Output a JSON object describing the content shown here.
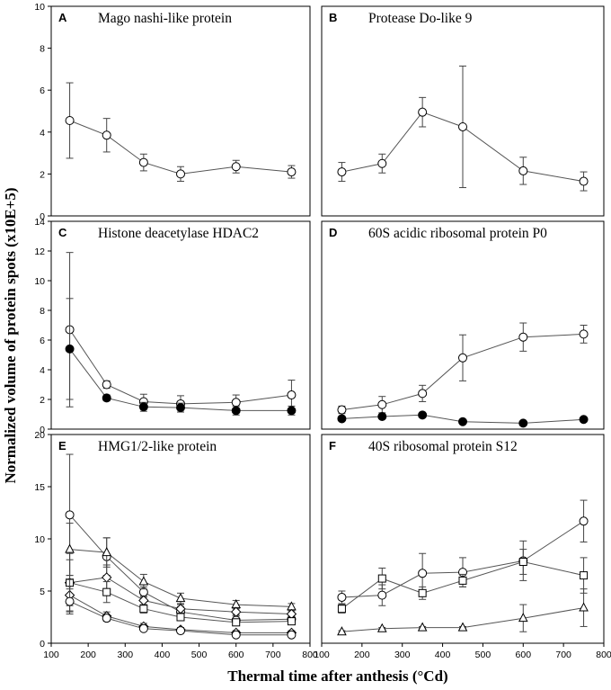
{
  "figure": {
    "ylabel": "Normalized volume of protein spots (x10E+5)",
    "xlabel": "Thermal time after anthesis (°Cd)"
  },
  "chart_data": [
    {
      "type": "line",
      "label": "A",
      "title": "Mago nashi-like protein",
      "xlim": [
        100,
        800
      ],
      "ylim": [
        0,
        10
      ],
      "xticks": [],
      "yticks": [
        0,
        2,
        4,
        6,
        8,
        10
      ],
      "series": [
        {
          "name": "s1",
          "marker": "circle-open",
          "x": [
            150,
            250,
            350,
            450,
            600,
            750
          ],
          "y": [
            4.55,
            3.85,
            2.55,
            2.0,
            2.35,
            2.1
          ],
          "err": [
            1.8,
            0.8,
            0.4,
            0.35,
            0.3,
            0.3
          ]
        }
      ]
    },
    {
      "type": "line",
      "label": "B",
      "title": "Protease Do-like 9",
      "xlim": [
        100,
        800
      ],
      "ylim": [
        0,
        10
      ],
      "xticks": [],
      "yticks": [],
      "series": [
        {
          "name": "s1",
          "marker": "circle-open",
          "x": [
            150,
            250,
            350,
            450,
            600,
            750
          ],
          "y": [
            2.1,
            2.5,
            4.95,
            4.25,
            2.15,
            1.65
          ],
          "err": [
            0.45,
            0.45,
            0.7,
            2.9,
            0.65,
            0.45
          ]
        }
      ]
    },
    {
      "type": "line",
      "label": "C",
      "title": "Histone deacetylase HDAC2",
      "xlim": [
        100,
        800
      ],
      "ylim": [
        0,
        14
      ],
      "xticks": [],
      "yticks": [
        0,
        2,
        4,
        6,
        8,
        10,
        12,
        14
      ],
      "series": [
        {
          "name": "s1",
          "marker": "circle-open",
          "x": [
            150,
            250,
            350,
            450,
            600,
            750
          ],
          "y": [
            6.7,
            3.0,
            1.85,
            1.7,
            1.8,
            2.3
          ],
          "err": [
            5.2,
            0.25,
            0.5,
            0.55,
            0.5,
            1.0
          ]
        },
        {
          "name": "s2",
          "marker": "circle-filled",
          "x": [
            150,
            250,
            350,
            450,
            600,
            750
          ],
          "y": [
            5.4,
            2.1,
            1.5,
            1.45,
            1.25,
            1.25
          ],
          "err": [
            3.4,
            0.2,
            0.3,
            0.3,
            0.3,
            0.3
          ]
        }
      ]
    },
    {
      "type": "line",
      "label": "D",
      "title": "60S acidic ribosomal protein P0",
      "xlim": [
        100,
        800
      ],
      "ylim": [
        0,
        14
      ],
      "xticks": [],
      "yticks": [],
      "series": [
        {
          "name": "s1",
          "marker": "circle-open",
          "x": [
            150,
            250,
            350,
            450,
            600,
            750
          ],
          "y": [
            1.3,
            1.65,
            2.4,
            4.8,
            6.2,
            6.4
          ],
          "err": [
            0.25,
            0.55,
            0.55,
            1.55,
            0.95,
            0.6
          ]
        },
        {
          "name": "s2",
          "marker": "circle-filled",
          "x": [
            150,
            250,
            350,
            450,
            600,
            750
          ],
          "y": [
            0.7,
            0.85,
            0.95,
            0.5,
            0.4,
            0.65
          ],
          "err": [
            0.1,
            0.15,
            0.1,
            0.05,
            0.05,
            0.15
          ]
        }
      ]
    },
    {
      "type": "line",
      "label": "E",
      "title": "HMG1/2-like protein",
      "xlim": [
        100,
        800
      ],
      "ylim": [
        0,
        20
      ],
      "xticks": [
        100,
        200,
        300,
        400,
        500,
        600,
        700,
        800
      ],
      "yticks": [
        0,
        5,
        10,
        15,
        20
      ],
      "series": [
        {
          "name": "s1",
          "marker": "circle-open",
          "x": [
            150,
            250,
            350,
            450,
            600,
            750
          ],
          "y": [
            12.3,
            8.3,
            4.9,
            3.0,
            2.2,
            2.3
          ],
          "err": [
            5.8,
            1.8,
            0.5,
            0.5,
            0.4,
            0.4
          ]
        },
        {
          "name": "s2",
          "marker": "triangle-open",
          "x": [
            150,
            250,
            350,
            450,
            600,
            750
          ],
          "y": [
            9.0,
            8.7,
            5.9,
            4.3,
            3.7,
            3.5
          ],
          "err": [
            2.5,
            1.4,
            0.7,
            0.5,
            0.4,
            0.3
          ]
        },
        {
          "name": "s3",
          "marker": "diamond-open",
          "x": [
            150,
            250,
            350,
            450,
            600,
            750
          ],
          "y": [
            5.8,
            6.3,
            4.1,
            3.3,
            3.0,
            2.8
          ],
          "err": [
            2.8,
            1.2,
            0.4,
            0.4,
            0.3,
            0.3
          ]
        },
        {
          "name": "s4",
          "marker": "square-open",
          "x": [
            150,
            250,
            350,
            450,
            600,
            750
          ],
          "y": [
            5.8,
            4.9,
            3.3,
            2.5,
            2.0,
            2.1
          ],
          "err": [
            2.2,
            1.0,
            0.4,
            0.3,
            0.3,
            0.3
          ]
        },
        {
          "name": "s5",
          "marker": "diamond-open",
          "x": [
            150,
            250,
            350,
            450,
            600,
            750
          ],
          "y": [
            4.6,
            2.6,
            1.6,
            1.3,
            1.0,
            1.0
          ],
          "err": [
            1.5,
            0.4,
            0.3,
            0.2,
            0.2,
            0.2
          ]
        },
        {
          "name": "s6",
          "marker": "circle-open",
          "x": [
            150,
            250,
            350,
            450,
            600,
            750
          ],
          "y": [
            4.0,
            2.4,
            1.4,
            1.2,
            0.8,
            0.8
          ],
          "err": [
            1.2,
            0.3,
            0.2,
            0.2,
            0.1,
            0.1
          ]
        }
      ]
    },
    {
      "type": "line",
      "label": "F",
      "title": "40S ribosomal protein S12",
      "xlim": [
        100,
        800
      ],
      "ylim": [
        0,
        20
      ],
      "xticks": [
        100,
        200,
        300,
        400,
        500,
        600,
        700,
        800
      ],
      "yticks": [],
      "series": [
        {
          "name": "s1",
          "marker": "circle-open",
          "x": [
            150,
            250,
            350,
            450,
            600,
            750
          ],
          "y": [
            4.4,
            4.6,
            6.7,
            6.8,
            7.9,
            11.7
          ],
          "err": [
            0.6,
            1.0,
            1.9,
            1.4,
            1.9,
            2.0
          ]
        },
        {
          "name": "s2",
          "marker": "square-open",
          "x": [
            150,
            250,
            350,
            450,
            600,
            750
          ],
          "y": [
            3.3,
            6.2,
            4.8,
            6.0,
            7.8,
            6.5
          ],
          "err": [
            0.4,
            1.0,
            0.6,
            0.6,
            1.2,
            1.7
          ]
        },
        {
          "name": "s3",
          "marker": "triangle-open",
          "x": [
            150,
            250,
            350,
            450,
            600,
            750
          ],
          "y": [
            1.1,
            1.4,
            1.5,
            1.5,
            2.4,
            3.4
          ],
          "err": [
            0.1,
            0.1,
            0.1,
            0.1,
            1.3,
            1.8
          ]
        }
      ]
    }
  ]
}
